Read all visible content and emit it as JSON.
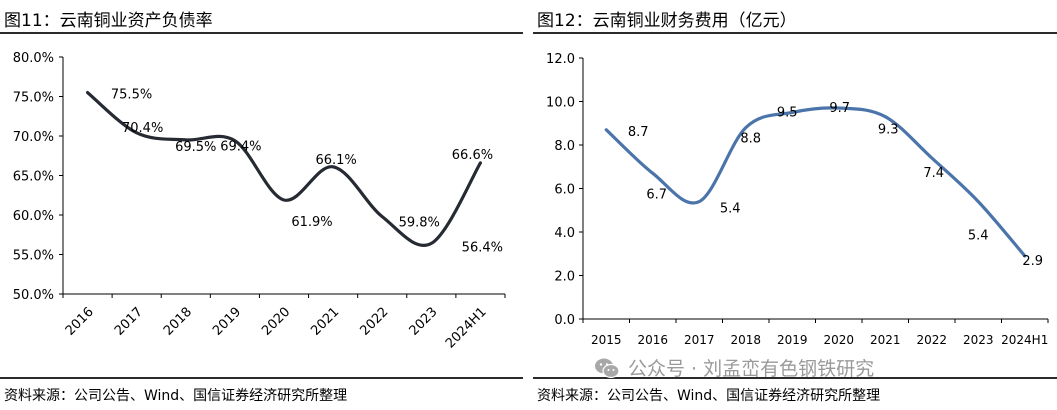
{
  "left": {
    "title": "图11：云南铜业资产负债率",
    "source": "资料来源：公司公告、Wind、国信证券经济研究所整理"
  },
  "right": {
    "title": "图12：云南铜业财务费用（亿元）",
    "source": "资料来源：公司公告、Wind、国信证券经济研究所整理"
  },
  "watermark": {
    "icon": "wechat-icon",
    "text": "公众号 · 刘孟峦有色钢铁研究"
  },
  "chart_data": [
    {
      "type": "line",
      "title": "",
      "xlabel": "",
      "ylabel": "",
      "categories": [
        "2016",
        "2017",
        "2018",
        "2019",
        "2020",
        "2021",
        "2022",
        "2023",
        "2024H1"
      ],
      "series": [
        {
          "values": [
            75.5,
            70.4,
            69.5,
            69.4,
            61.9,
            66.1,
            59.8,
            56.4,
            66.6
          ],
          "labels": [
            "75.5%",
            "70.4%",
            "69.5%",
            "69.4%",
            "61.9%",
            "66.1%",
            "59.8%",
            "56.4%",
            "66.6%"
          ],
          "color": "#262a33"
        }
      ],
      "ylim": [
        50,
        80
      ],
      "yticks": [
        "50.0%",
        "55.0%",
        "60.0%",
        "65.0%",
        "70.0%",
        "75.0%",
        "80.0%"
      ],
      "tick_values": [
        50,
        55,
        60,
        65,
        70,
        75,
        80
      ],
      "grid": false,
      "legend": "none"
    },
    {
      "type": "line",
      "title": "",
      "xlabel": "",
      "ylabel": "",
      "categories": [
        "2015",
        "2016",
        "2017",
        "2018",
        "2019",
        "2020",
        "2021",
        "2022",
        "2023",
        "2024H1"
      ],
      "series": [
        {
          "values": [
            8.7,
            6.7,
            5.4,
            8.8,
            9.5,
            9.7,
            9.3,
            7.4,
            5.4,
            2.9
          ],
          "labels": [
            "8.7",
            "6.7",
            "5.4",
            "8.8",
            "9.5",
            "9.7",
            "9.3",
            "7.4",
            "5.4",
            "2.9"
          ],
          "color": "#4a74aa"
        }
      ],
      "ylim": [
        0,
        12
      ],
      "yticks": [
        "0.0",
        "2.0",
        "4.0",
        "6.0",
        "8.0",
        "10.0",
        "12.0"
      ],
      "tick_values": [
        0,
        2,
        4,
        6,
        8,
        10,
        12
      ],
      "grid": false,
      "legend": "none"
    }
  ]
}
